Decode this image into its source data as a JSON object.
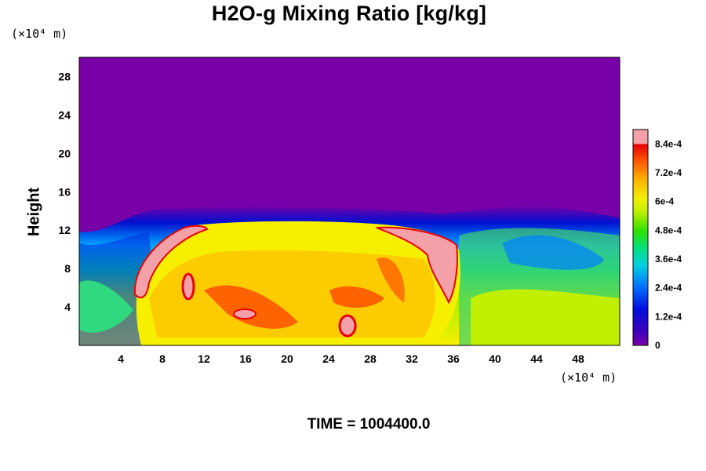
{
  "chart_data": {
    "type": "heatmap",
    "title": "H2O-g Mixing Ratio [kg/kg]",
    "xlabel": "",
    "ylabel": "Height",
    "x_unit": "(×10⁴ m)",
    "y_unit": "(×10⁴ m)",
    "xlim": [
      0,
      52
    ],
    "ylim": [
      0,
      30
    ],
    "x_ticks": [
      "4",
      "8",
      "12",
      "16",
      "20",
      "24",
      "28",
      "32",
      "36",
      "40",
      "44",
      "48"
    ],
    "y_ticks": [
      "4",
      "8",
      "12",
      "16",
      "20",
      "24",
      "28"
    ],
    "colorbar": {
      "min": 0,
      "max": 0.0009,
      "tick_labels": [
        "0",
        "1.2e-4",
        "2.4e-4",
        "3.6e-4",
        "4.8e-4",
        "6e-4",
        "7.2e-4",
        "8.4e-4"
      ]
    },
    "annotation": "TIME = 1004400.0",
    "colors": {
      "background_field": "#7700a8",
      "saturated": "#f4a0a8"
    }
  }
}
